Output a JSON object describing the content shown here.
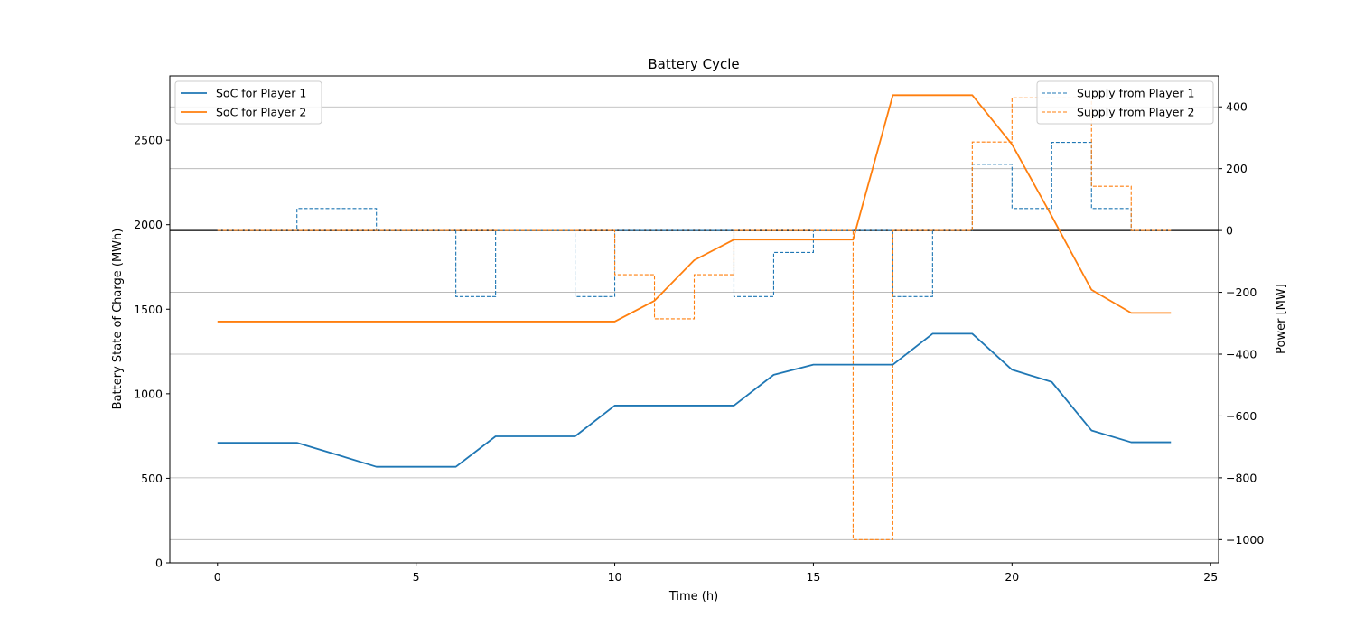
{
  "chart_data": {
    "type": "line",
    "title": "Battery Cycle",
    "xlabel": "Time (h)",
    "ylabel_left": "Battery State of Charge (MWh)",
    "ylabel_right": "Power [MW]",
    "xlim": [
      -1.2,
      25.2
    ],
    "ylim_left": [
      0,
      2880
    ],
    "ylim_right": [
      -1075,
      500
    ],
    "xticks": [
      0,
      5,
      10,
      15,
      20,
      25
    ],
    "yticks_left": [
      0,
      500,
      1000,
      1500,
      2000,
      2500
    ],
    "yticks_right": [
      -1000,
      -800,
      -600,
      -400,
      -200,
      0,
      200,
      400
    ],
    "xtick_labels": [
      "0",
      "5",
      "10",
      "15",
      "20",
      "25"
    ],
    "ytick_labels_left": [
      "0",
      "500",
      "1000",
      "1500",
      "2000",
      "2500"
    ],
    "ytick_labels_right": [
      "−1000",
      "−800",
      "−600",
      "−400",
      "−200",
      "0",
      "200",
      "400"
    ],
    "grid": "horizontal lines at right-axis ticks",
    "x": [
      0,
      1,
      2,
      3,
      4,
      5,
      6,
      7,
      8,
      9,
      10,
      11,
      12,
      13,
      14,
      15,
      16,
      17,
      18,
      19,
      20,
      21,
      22,
      23,
      24
    ],
    "soc_series": [
      {
        "name": "SoC for Player 1",
        "color": "#1f77b4",
        "axis": "left",
        "values": [
          710,
          710,
          710,
          640,
          568,
          568,
          568,
          748,
          748,
          748,
          930,
          930,
          930,
          930,
          1112,
          1172,
          1172,
          1172,
          1355,
          1355,
          1142,
          1070,
          783,
          713,
          713
        ]
      },
      {
        "name": "SoC for Player 2",
        "color": "#ff7f0e",
        "axis": "left",
        "values": [
          1427,
          1427,
          1427,
          1427,
          1427,
          1427,
          1427,
          1427,
          1427,
          1427,
          1427,
          1550,
          1790,
          1912,
          1912,
          1912,
          1912,
          2766,
          2766,
          2766,
          2475,
          2050,
          1615,
          1478,
          1478
        ]
      }
    ],
    "supply_series": [
      {
        "name": "Supply from Player 1",
        "color": "#1f77b4",
        "axis": "right",
        "drawstyle": "steps-post",
        "linestyle": "dashed",
        "values": [
          0,
          0,
          71,
          71,
          0,
          0,
          -214,
          0,
          0,
          -214,
          0,
          0,
          0,
          -214,
          -71,
          0,
          0,
          -214,
          0,
          214,
          71,
          285,
          71,
          0,
          0
        ]
      },
      {
        "name": "Supply from Player 2",
        "color": "#ff7f0e",
        "axis": "right",
        "drawstyle": "steps-post",
        "linestyle": "dashed",
        "values": [
          0,
          0,
          0,
          0,
          0,
          0,
          0,
          0,
          0,
          0,
          -143,
          -286,
          -143,
          0,
          0,
          0,
          -1000,
          0,
          0,
          286,
          429,
          429,
          143,
          0,
          0
        ]
      }
    ],
    "legend_left": "upper left",
    "legend_right": "upper right"
  }
}
